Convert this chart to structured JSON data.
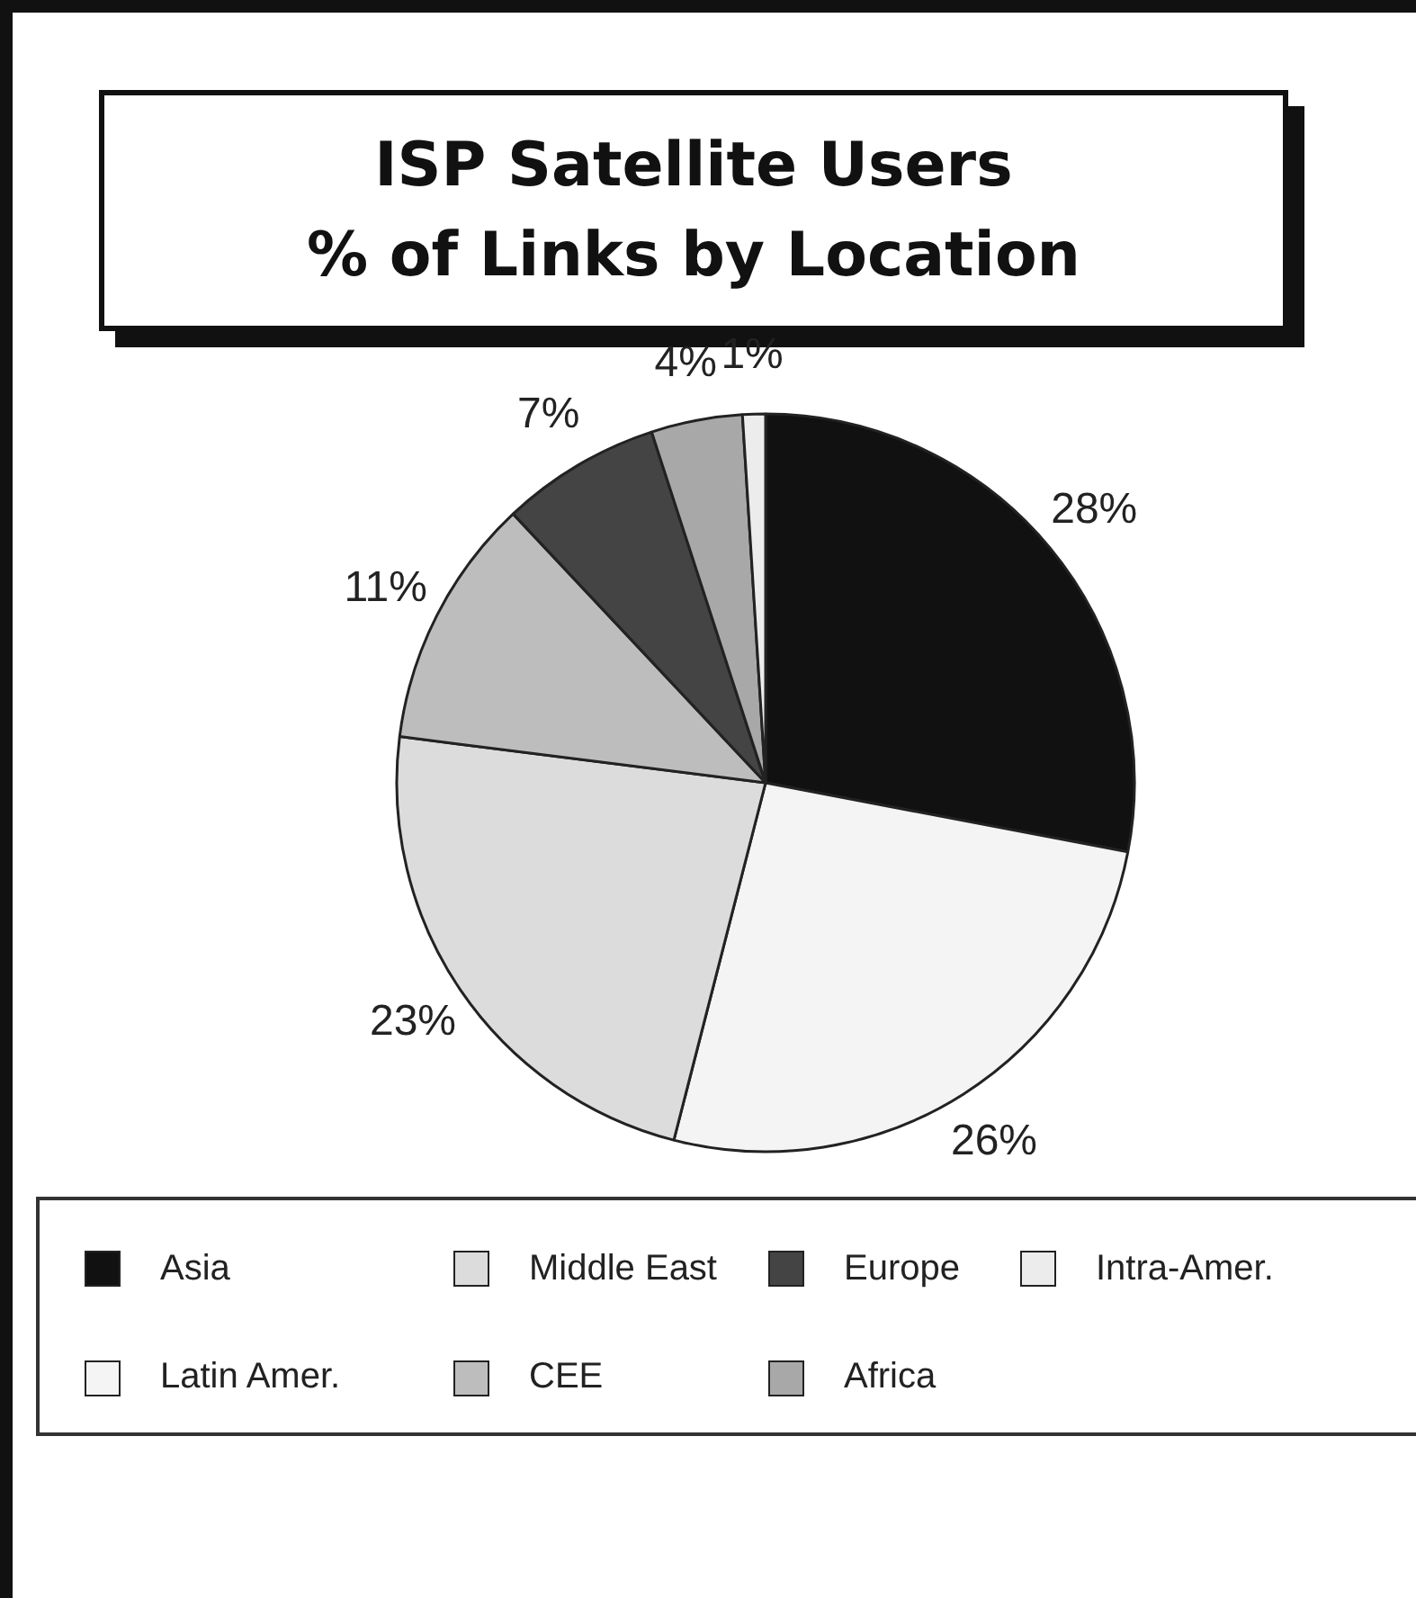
{
  "chart_data": {
    "type": "pie",
    "title": "ISP Satellite Users\n% of Links by Location",
    "categories": [
      "Asia",
      "Latin Amer.",
      "Middle East",
      "CEE",
      "Europe",
      "Africa",
      "Intra-Amer."
    ],
    "values": [
      28,
      26,
      23,
      11,
      7,
      4,
      1
    ],
    "value_labels": [
      "28%",
      "26%",
      "23%",
      "11%",
      "7%",
      "4%",
      "1%"
    ],
    "colors": [
      "#111111",
      "#f4f4f4",
      "#dcdcdc",
      "#bdbdbd",
      "#444444",
      "#a8a8a8",
      "#ececec"
    ],
    "legend": "bottom"
  }
}
